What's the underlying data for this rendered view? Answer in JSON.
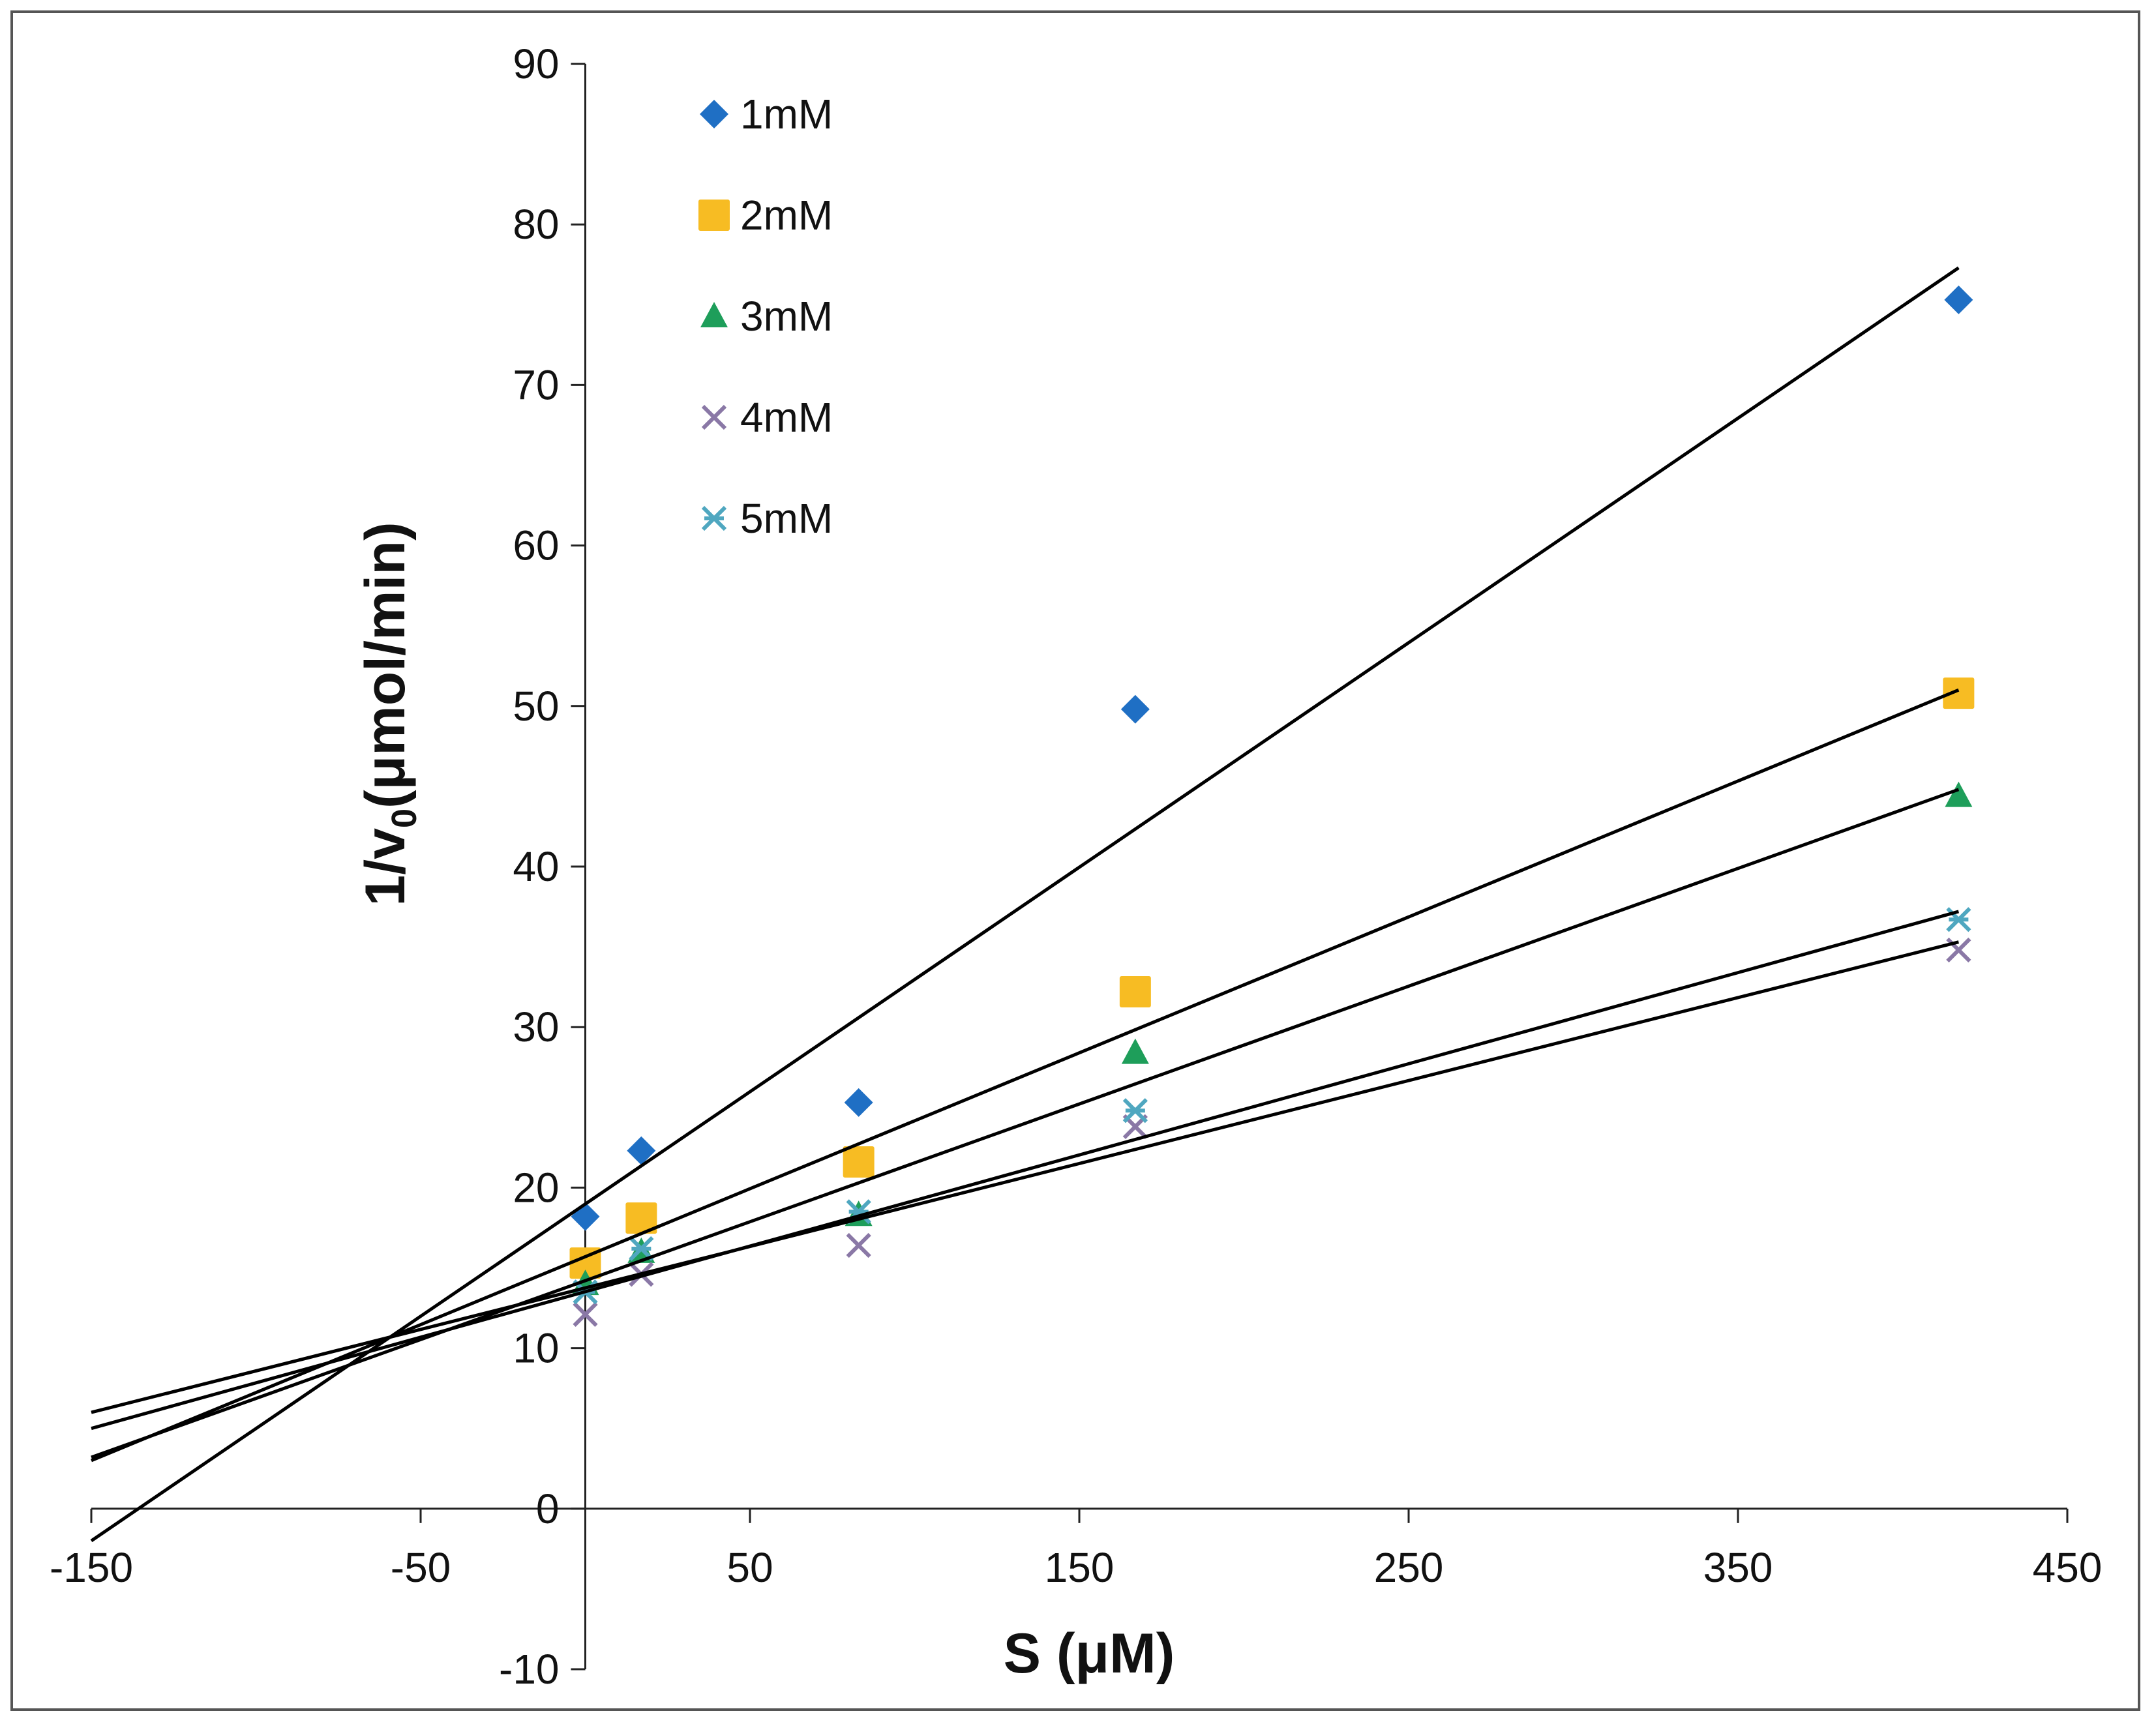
{
  "chart_data": {
    "type": "scatter",
    "title": "",
    "xlabel": "S (μM)",
    "ylabel_main": "1/v",
    "ylabel_sub": "0",
    "ylabel_tail": "(μmol/min)",
    "xlim": [
      -150,
      450
    ],
    "ylim": [
      -10,
      90
    ],
    "xticks": [
      -150,
      -50,
      50,
      150,
      250,
      350,
      450
    ],
    "yticks": [
      -10,
      0,
      10,
      20,
      30,
      40,
      50,
      60,
      70,
      80,
      90
    ],
    "grid": false,
    "legend_position": "top-left",
    "series": [
      {
        "name": "1mM",
        "marker": "diamond",
        "color": "#1f6fc4",
        "x": [
          0,
          17,
          83,
          167,
          417
        ],
        "y": [
          18.2,
          22.3,
          25.3,
          49.8,
          75.3
        ],
        "fit": {
          "x": [
            -150,
            417
          ],
          "y": [
            -2,
            77.3
          ]
        }
      },
      {
        "name": "2mM",
        "marker": "square",
        "color": "#f7bc23",
        "x": [
          0,
          17,
          83,
          167,
          417
        ],
        "y": [
          15.3,
          18.1,
          21.6,
          32.2,
          50.8
        ],
        "fit": {
          "x": [
            -150,
            417
          ],
          "y": [
            3,
            51
          ]
        }
      },
      {
        "name": "3mM",
        "marker": "triangle",
        "color": "#1e9e5a",
        "x": [
          0,
          17,
          83,
          167,
          417
        ],
        "y": [
          14.0,
          16.0,
          18.3,
          28.4,
          44.4
        ],
        "fit": {
          "x": [
            -150,
            417
          ],
          "y": [
            3.2,
            44.8
          ]
        }
      },
      {
        "name": "4mM",
        "marker": "x",
        "color": "#8a78a6",
        "x": [
          0,
          17,
          83,
          167,
          417
        ],
        "y": [
          12.1,
          14.6,
          16.4,
          23.8,
          34.8
        ],
        "fit": {
          "x": [
            -150,
            417
          ],
          "y": [
            6,
            35.3
          ]
        }
      },
      {
        "name": "5mM",
        "marker": "star",
        "color": "#4fa7c0",
        "x": [
          0,
          17,
          83,
          167,
          417
        ],
        "y": [
          13.5,
          16.2,
          18.5,
          24.8,
          36.7
        ],
        "fit": {
          "x": [
            -150,
            417
          ],
          "y": [
            5,
            37.2
          ]
        }
      }
    ]
  }
}
